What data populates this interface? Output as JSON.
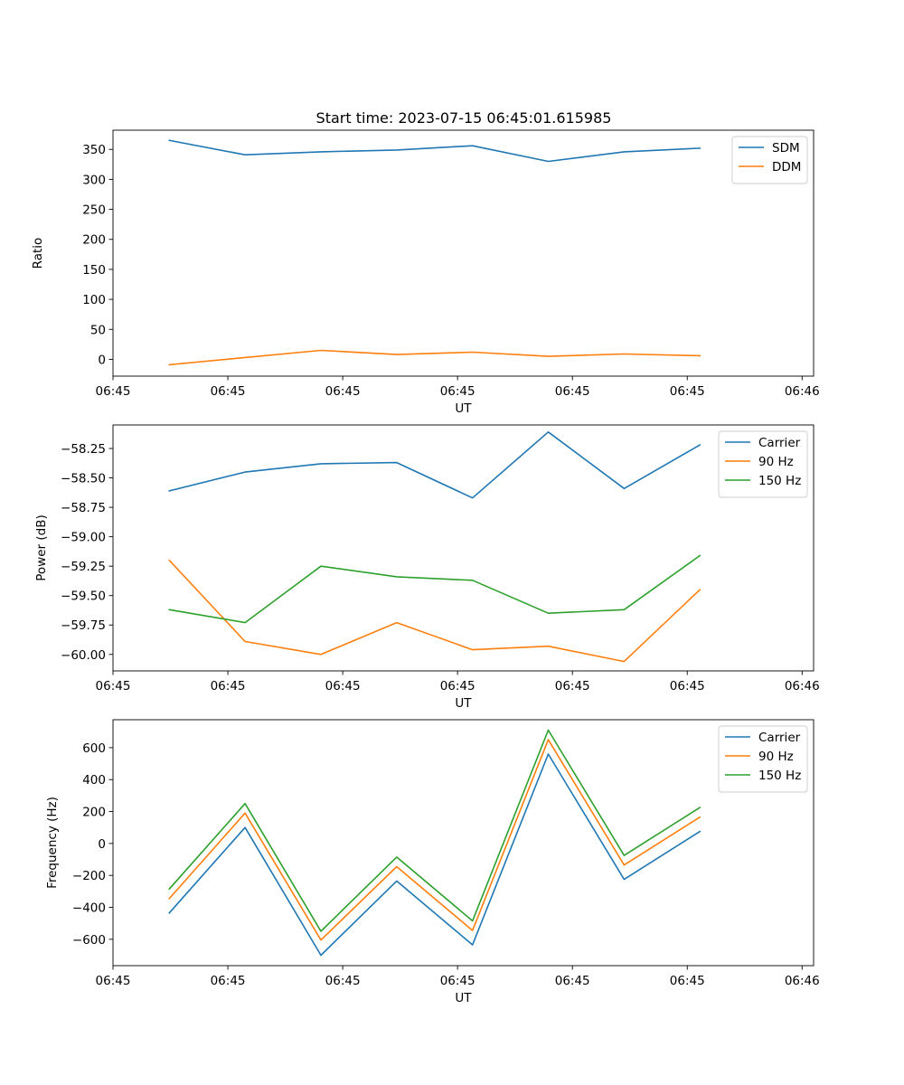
{
  "chart_data": [
    {
      "type": "line",
      "title": "Start time: 2023-07-15 06:45:01.615985",
      "xlabel": "UT",
      "ylabel": "Ratio",
      "xlim": [
        0,
        6.1
      ],
      "ylim": [
        -28,
        382
      ],
      "yticks": [
        0,
        50,
        100,
        150,
        200,
        250,
        300,
        350
      ],
      "ytick_labels": [
        "0",
        "50",
        "100",
        "150",
        "200",
        "250",
        "300",
        "350"
      ],
      "xticks": [
        0,
        1,
        2,
        3,
        4,
        5,
        6
      ],
      "xtick_labels": [
        "06:45",
        "06:45",
        "06:45",
        "06:45",
        "06:45",
        "06:45",
        "06:46"
      ],
      "x": [
        0.49,
        1.15,
        1.81,
        2.47,
        3.13,
        3.79,
        4.45,
        5.11
      ],
      "legend_position": "top-right",
      "series": [
        {
          "name": "SDM",
          "color": "#1f77b4",
          "values": [
            365,
            341,
            346,
            349,
            356,
            330,
            346,
            352
          ]
        },
        {
          "name": "DDM",
          "color": "#ff7f0e",
          "values": [
            -9,
            3,
            15,
            8,
            12,
            5,
            9,
            6
          ]
        }
      ]
    },
    {
      "type": "line",
      "title": "",
      "xlabel": "UT",
      "ylabel": "Power (dB)",
      "xlim": [
        0,
        6.1
      ],
      "ylim": [
        -60.14,
        -58.05
      ],
      "yticks": [
        -60.0,
        -59.75,
        -59.5,
        -59.25,
        -59.0,
        -58.75,
        -58.5,
        -58.25
      ],
      "ytick_labels": [
        "−60.00",
        "−59.75",
        "−59.50",
        "−59.25",
        "−59.00",
        "−58.75",
        "−58.50",
        "−58.25"
      ],
      "xticks": [
        0,
        1,
        2,
        3,
        4,
        5,
        6
      ],
      "xtick_labels": [
        "06:45",
        "06:45",
        "06:45",
        "06:45",
        "06:45",
        "06:45",
        "06:46"
      ],
      "x": [
        0.49,
        1.15,
        1.81,
        2.47,
        3.13,
        3.79,
        4.45,
        5.11
      ],
      "legend_position": "top-right",
      "series": [
        {
          "name": "Carrier",
          "color": "#1f77b4",
          "values": [
            -58.61,
            -58.45,
            -58.38,
            -58.37,
            -58.67,
            -58.11,
            -58.59,
            -58.22
          ]
        },
        {
          "name": "90 Hz",
          "color": "#ff7f0e",
          "values": [
            -59.2,
            -59.89,
            -60.0,
            -59.73,
            -59.96,
            -59.93,
            -60.06,
            -59.45
          ]
        },
        {
          "name": "150 Hz",
          "color": "#2ca02c",
          "values": [
            -59.62,
            -59.73,
            -59.25,
            -59.34,
            -59.37,
            -59.65,
            -59.62,
            -59.16
          ]
        }
      ]
    },
    {
      "type": "line",
      "title": "",
      "xlabel": "UT",
      "ylabel": "Frequency (Hz)",
      "xlim": [
        0,
        6.1
      ],
      "ylim": [
        -765,
        775
      ],
      "yticks": [
        -600,
        -400,
        -200,
        0,
        200,
        400,
        600
      ],
      "ytick_labels": [
        "−600",
        "−400",
        "−200",
        "0",
        "200",
        "400",
        "600"
      ],
      "xticks": [
        0,
        1,
        2,
        3,
        4,
        5,
        6
      ],
      "xtick_labels": [
        "06:45",
        "06:45",
        "06:45",
        "06:45",
        "06:45",
        "06:45",
        "06:46"
      ],
      "x": [
        0.49,
        1.15,
        1.81,
        2.47,
        3.13,
        3.79,
        4.45,
        5.11
      ],
      "legend_position": "top-right",
      "series": [
        {
          "name": "Carrier",
          "color": "#1f77b4",
          "values": [
            -435,
            100,
            -700,
            -235,
            -635,
            560,
            -225,
            75
          ]
        },
        {
          "name": "90 Hz",
          "color": "#ff7f0e",
          "values": [
            -345,
            190,
            -605,
            -145,
            -545,
            650,
            -135,
            165
          ]
        },
        {
          "name": "150 Hz",
          "color": "#2ca02c",
          "values": [
            -285,
            250,
            -550,
            -85,
            -485,
            710,
            -75,
            225
          ]
        }
      ]
    }
  ]
}
